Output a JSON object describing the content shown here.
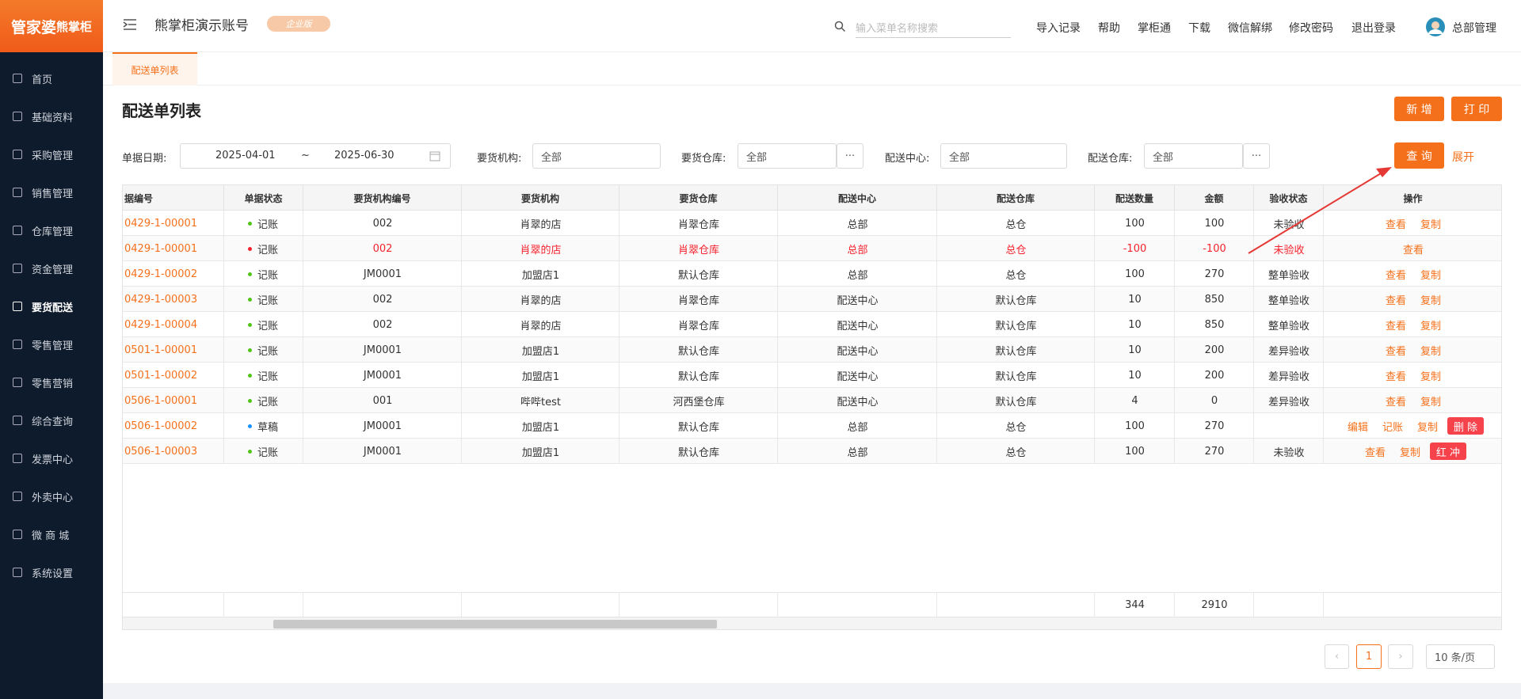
{
  "header": {
    "logo_a": "管家婆",
    "logo_b": "熊掌柜",
    "account": "熊掌柜演示账号",
    "badge": "企业版",
    "search_placeholder": "输入菜单名称搜索",
    "links": [
      "导入记录",
      "帮助",
      "掌柜通",
      "下载",
      "微信解绑",
      "修改密码",
      "退出登录"
    ],
    "user": "总部管理"
  },
  "sidebar": {
    "items": [
      "首页",
      "基础资料",
      "采购管理",
      "销售管理",
      "仓库管理",
      "资金管理",
      "要货配送",
      "零售管理",
      "零售营销",
      "综合查询",
      "发票中心",
      "外卖中心",
      "微 商 城",
      "系统设置"
    ],
    "active": 6
  },
  "tab": "配送单列表",
  "page_title": "配送单列表",
  "buttons": {
    "add": "新 增",
    "print": "打 印",
    "query": "查 询",
    "expand": "展开"
  },
  "filters": {
    "date_label": "单据日期:",
    "date_from": "2025-04-01",
    "date_sep": "~",
    "date_to": "2025-06-30",
    "org_label": "要货机构:",
    "org_value": "全部",
    "wh_label": "要货仓库:",
    "wh_value": "全部",
    "center_label": "配送中心:",
    "center_value": "全部",
    "dwh_label": "配送仓库:",
    "dwh_value": "全部"
  },
  "table": {
    "columns": [
      "据编号",
      "单据状态",
      "要货机构编号",
      "要货机构",
      "要货仓库",
      "配送中心",
      "配送仓库",
      "配送数量",
      "金额",
      "验收状态",
      "操作"
    ],
    "rows": [
      {
        "dot": "#52c41a",
        "red": false,
        "cells": [
          "0429-1-00001",
          "记账",
          "002",
          "肖翠的店",
          "肖翠仓库",
          "总部",
          "总仓",
          "100",
          "100",
          "未验收"
        ],
        "actions": [
          {
            "text": "查看"
          },
          {
            "text": "复制"
          }
        ]
      },
      {
        "dot": "#f5222d",
        "red": true,
        "cells": [
          "0429-1-00001",
          "记账",
          "002",
          "肖翠的店",
          "肖翠仓库",
          "总部",
          "总仓",
          "-100",
          "-100",
          "未验收"
        ],
        "actions": [
          {
            "text": "查看"
          }
        ]
      },
      {
        "dot": "#52c41a",
        "red": false,
        "cells": [
          "0429-1-00002",
          "记账",
          "JM0001",
          "加盟店1",
          "默认仓库",
          "总部",
          "总仓",
          "100",
          "270",
          "整单验收"
        ],
        "actions": [
          {
            "text": "查看"
          },
          {
            "text": "复制"
          }
        ]
      },
      {
        "dot": "#52c41a",
        "red": false,
        "cells": [
          "0429-1-00003",
          "记账",
          "002",
          "肖翠的店",
          "肖翠仓库",
          "配送中心",
          "默认仓库",
          "10",
          "850",
          "整单验收"
        ],
        "actions": [
          {
            "text": "查看"
          },
          {
            "text": "复制"
          }
        ]
      },
      {
        "dot": "#52c41a",
        "red": false,
        "cells": [
          "0429-1-00004",
          "记账",
          "002",
          "肖翠的店",
          "肖翠仓库",
          "配送中心",
          "默认仓库",
          "10",
          "850",
          "整单验收"
        ],
        "actions": [
          {
            "text": "查看"
          },
          {
            "text": "复制"
          }
        ]
      },
      {
        "dot": "#52c41a",
        "red": false,
        "cells": [
          "0501-1-00001",
          "记账",
          "JM0001",
          "加盟店1",
          "默认仓库",
          "配送中心",
          "默认仓库",
          "10",
          "200",
          "差异验收"
        ],
        "actions": [
          {
            "text": "查看"
          },
          {
            "text": "复制"
          }
        ]
      },
      {
        "dot": "#52c41a",
        "red": false,
        "cells": [
          "0501-1-00002",
          "记账",
          "JM0001",
          "加盟店1",
          "默认仓库",
          "配送中心",
          "默认仓库",
          "10",
          "200",
          "差异验收"
        ],
        "actions": [
          {
            "text": "查看"
          },
          {
            "text": "复制"
          }
        ]
      },
      {
        "dot": "#52c41a",
        "red": false,
        "cells": [
          "0506-1-00001",
          "记账",
          "001",
          "哔哔test",
          "河西堡仓库",
          "配送中心",
          "默认仓库",
          "4",
          "0",
          "差异验收"
        ],
        "actions": [
          {
            "text": "查看"
          },
          {
            "text": "复制"
          }
        ]
      },
      {
        "dot": "#1890ff",
        "red": false,
        "cells": [
          "0506-1-00002",
          "草稿",
          "JM0001",
          "加盟店1",
          "默认仓库",
          "总部",
          "总仓",
          "100",
          "270",
          null
        ],
        "actions": [
          {
            "text": "编辑"
          },
          {
            "text": "记账"
          },
          {
            "text": "复制"
          },
          {
            "text": "删 除",
            "danger": true
          }
        ]
      },
      {
        "dot": "#52c41a",
        "red": false,
        "cells": [
          "0506-1-00003",
          "记账",
          "JM0001",
          "加盟店1",
          "默认仓库",
          "总部",
          "总仓",
          "100",
          "270",
          "未验收"
        ],
        "actions": [
          {
            "text": "查看"
          },
          {
            "text": "复制"
          },
          {
            "text": "红 冲",
            "danger": true
          }
        ]
      }
    ],
    "totals": {
      "qty": "344",
      "amount": "2910"
    }
  },
  "pagination": {
    "page": "1",
    "size": "10 条/页"
  }
}
